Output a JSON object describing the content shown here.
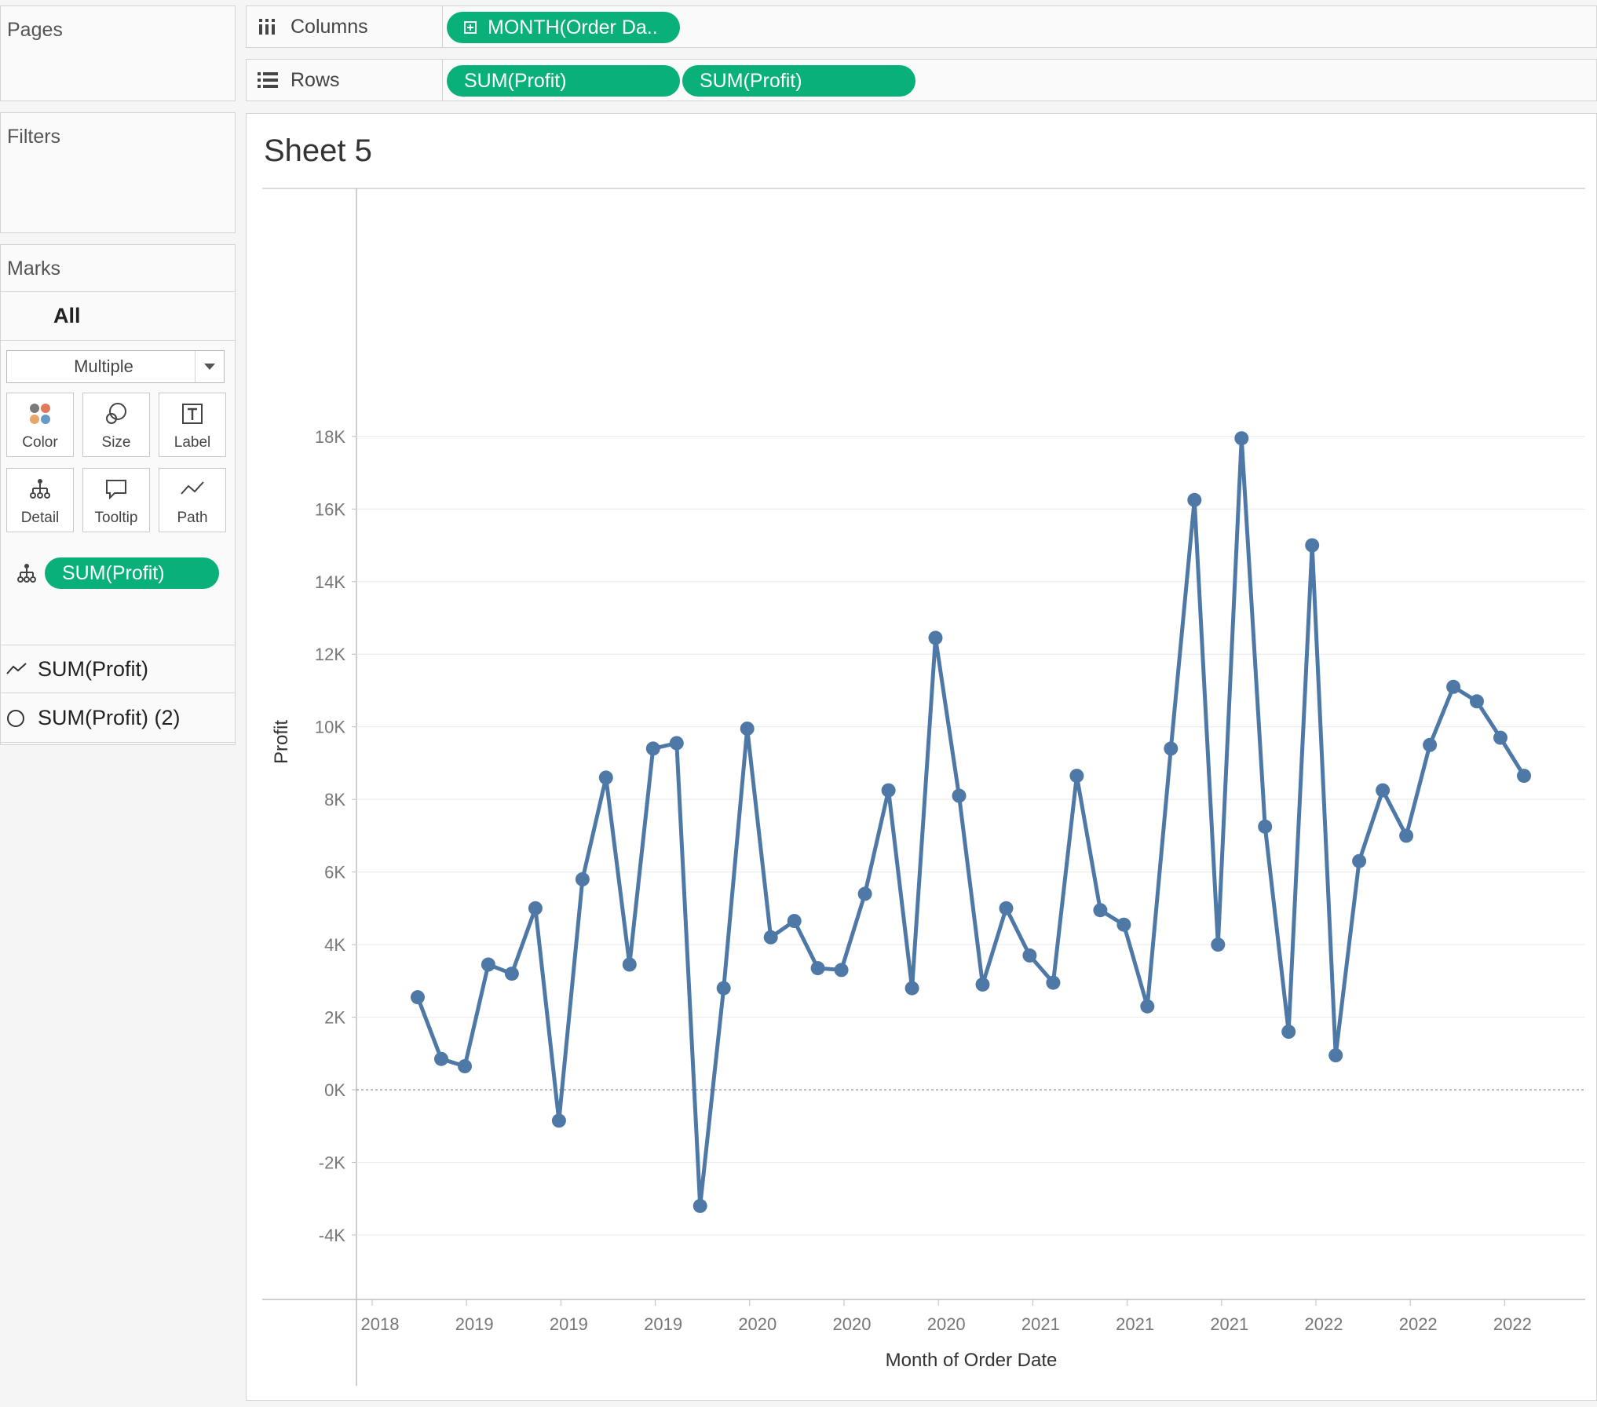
{
  "pages": {
    "title": "Pages"
  },
  "filters": {
    "title": "Filters"
  },
  "shelves": {
    "columns": {
      "label": "Columns",
      "pills": [
        "MONTH(Order Da.."
      ]
    },
    "rows": {
      "label": "Rows",
      "pills": [
        "SUM(Profit)",
        "SUM(Profit)"
      ]
    }
  },
  "marks": {
    "title": "Marks",
    "all_label": "All",
    "mark_type": "Multiple",
    "buttons": [
      "Color",
      "Size",
      "Label",
      "Detail",
      "Tooltip",
      "Path"
    ],
    "detail_pill": "SUM(Profit)",
    "layers": [
      "SUM(Profit)",
      "SUM(Profit) (2)"
    ]
  },
  "sheet": {
    "title": "Sheet 5"
  },
  "colors": {
    "pill": "#0ab079",
    "line": "#4e79a7"
  },
  "chart_data": {
    "type": "line",
    "xlabel": "Month of Order Date",
    "ylabel": "Profit",
    "x_tick_labels": [
      "2018",
      "2019",
      "2019",
      "2019",
      "2020",
      "2020",
      "2020",
      "2021",
      "2021",
      "2021",
      "2022",
      "2022",
      "2022"
    ],
    "y_tick_labels": [
      "-4K",
      "-2K",
      "0K",
      "2K",
      "4K",
      "6K",
      "8K",
      "10K",
      "12K",
      "14K",
      "16K",
      "18K"
    ],
    "ylim": [
      -4000,
      18000
    ],
    "grid": true,
    "markers": true,
    "values": [
      2550,
      850,
      650,
      3450,
      3200,
      5000,
      -850,
      5800,
      8600,
      3450,
      9400,
      9550,
      -3200,
      2800,
      9950,
      4200,
      4650,
      3350,
      3300,
      5400,
      8250,
      2800,
      12450,
      8100,
      2900,
      5000,
      3700,
      2950,
      8650,
      4950,
      4550,
      2300,
      9400,
      16250,
      4000,
      17950,
      7250,
      1600,
      15000,
      950,
      6300,
      8250,
      7000,
      9500,
      11100,
      10700,
      9700,
      8650
    ]
  }
}
